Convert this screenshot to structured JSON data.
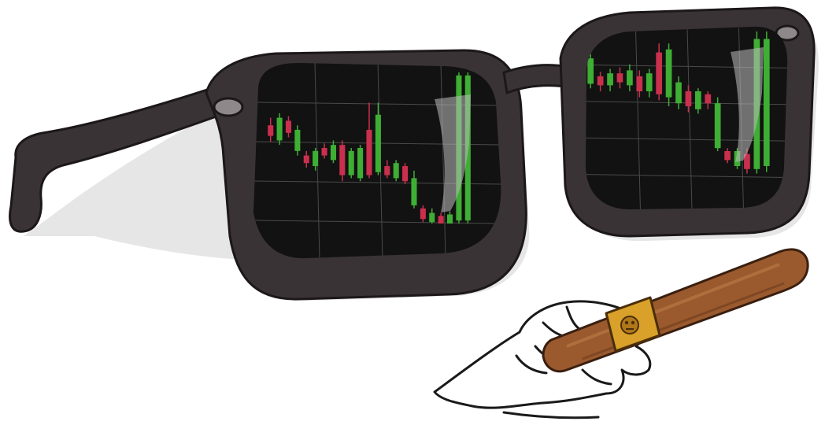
{
  "colors": {
    "background": "#ffffff",
    "frame": "#3a3336",
    "frame_outline": "#1c1718",
    "lens": "#121212",
    "grid": "#4a4a4a",
    "candle_up": "#3fae34",
    "candle_down": "#c9304d",
    "cigar": "#9a5a2e",
    "cigar_band": "#d9a12a"
  },
  "illustration": {
    "subject": "sunglasses-with-candlestick-reflections-and-cigar",
    "left_lens_candles": [
      {
        "dir": "down",
        "o": 0.35,
        "c": 0.42,
        "h": 0.3,
        "l": 0.46
      },
      {
        "dir": "up",
        "o": 0.45,
        "c": 0.3,
        "h": 0.27,
        "l": 0.48
      },
      {
        "dir": "down",
        "o": 0.32,
        "c": 0.4,
        "h": 0.29,
        "l": 0.43
      },
      {
        "dir": "up",
        "o": 0.52,
        "c": 0.38,
        "h": 0.35,
        "l": 0.55
      },
      {
        "dir": "down",
        "o": 0.55,
        "c": 0.6,
        "h": 0.52,
        "l": 0.63
      },
      {
        "dir": "up",
        "o": 0.62,
        "c": 0.52,
        "h": 0.5,
        "l": 0.65
      },
      {
        "dir": "down",
        "o": 0.5,
        "c": 0.55,
        "h": 0.47,
        "l": 0.57
      },
      {
        "dir": "up",
        "o": 0.58,
        "c": 0.48,
        "h": 0.45,
        "l": 0.6
      },
      {
        "dir": "down",
        "o": 0.48,
        "c": 0.68,
        "h": 0.45,
        "l": 0.72
      },
      {
        "dir": "up",
        "o": 0.68,
        "c": 0.52,
        "h": 0.5,
        "l": 0.7
      },
      {
        "dir": "up",
        "o": 0.7,
        "c": 0.5,
        "h": 0.48,
        "l": 0.72
      },
      {
        "dir": "down",
        "o": 0.38,
        "c": 0.68,
        "h": 0.2,
        "l": 0.7
      },
      {
        "dir": "up",
        "o": 0.66,
        "c": 0.28,
        "h": 0.2,
        "l": 0.68
      },
      {
        "dir": "down",
        "o": 0.62,
        "c": 0.68,
        "h": 0.58,
        "l": 0.7
      },
      {
        "dir": "up",
        "o": 0.7,
        "c": 0.6,
        "h": 0.58,
        "l": 0.72
      },
      {
        "dir": "down",
        "o": 0.62,
        "c": 0.72,
        "h": 0.6,
        "l": 0.74
      },
      {
        "dir": "up",
        "o": 0.88,
        "c": 0.7,
        "h": 0.65,
        "l": 0.9
      },
      {
        "dir": "down",
        "o": 0.9,
        "c": 0.97,
        "h": 0.88,
        "l": 0.99
      },
      {
        "dir": "up",
        "o": 0.99,
        "c": 0.93,
        "h": 0.9,
        "l": 1.0
      },
      {
        "dir": "down",
        "o": 0.95,
        "c": 1.0,
        "h": 0.93,
        "l": 1.0
      },
      {
        "dir": "up",
        "o": 1.0,
        "c": 0.94,
        "h": 0.92,
        "l": 1.0
      },
      {
        "dir": "up",
        "o": 0.98,
        "c": 0.02,
        "h": 0.0,
        "l": 1.0
      },
      {
        "dir": "up",
        "o": 0.98,
        "c": 0.02,
        "h": 0.0,
        "l": 1.0
      }
    ],
    "right_lens_candles": [
      {
        "dir": "up",
        "o": 0.35,
        "c": 0.18,
        "h": 0.15,
        "l": 0.38
      },
      {
        "dir": "down",
        "o": 0.3,
        "c": 0.36,
        "h": 0.27,
        "l": 0.4
      },
      {
        "dir": "up",
        "o": 0.36,
        "c": 0.28,
        "h": 0.25,
        "l": 0.4
      },
      {
        "dir": "down",
        "o": 0.28,
        "c": 0.34,
        "h": 0.24,
        "l": 0.38
      },
      {
        "dir": "up",
        "o": 0.36,
        "c": 0.26,
        "h": 0.22,
        "l": 0.4
      },
      {
        "dir": "down",
        "o": 0.3,
        "c": 0.4,
        "h": 0.26,
        "l": 0.44
      },
      {
        "dir": "up",
        "o": 0.4,
        "c": 0.28,
        "h": 0.25,
        "l": 0.44
      },
      {
        "dir": "down",
        "o": 0.14,
        "c": 0.42,
        "h": 0.08,
        "l": 0.46
      },
      {
        "dir": "up",
        "o": 0.44,
        "c": 0.12,
        "h": 0.08,
        "l": 0.5
      },
      {
        "dir": "up",
        "o": 0.48,
        "c": 0.34,
        "h": 0.3,
        "l": 0.52
      },
      {
        "dir": "down",
        "o": 0.4,
        "c": 0.5,
        "h": 0.36,
        "l": 0.54
      },
      {
        "dir": "up",
        "o": 0.52,
        "c": 0.4,
        "h": 0.38,
        "l": 0.55
      },
      {
        "dir": "down",
        "o": 0.42,
        "c": 0.48,
        "h": 0.4,
        "l": 0.52
      },
      {
        "dir": "up",
        "o": 0.78,
        "c": 0.48,
        "h": 0.44,
        "l": 0.8
      },
      {
        "dir": "down",
        "o": 0.8,
        "c": 0.86,
        "h": 0.78,
        "l": 0.88
      },
      {
        "dir": "up",
        "o": 0.9,
        "c": 0.8,
        "h": 0.78,
        "l": 0.92
      },
      {
        "dir": "down",
        "o": 0.82,
        "c": 0.92,
        "h": 0.78,
        "l": 0.95
      },
      {
        "dir": "up",
        "o": 0.92,
        "c": 0.05,
        "h": 0.0,
        "l": 0.95
      },
      {
        "dir": "up",
        "o": 0.9,
        "c": 0.05,
        "h": 0.0,
        "l": 0.94
      }
    ]
  }
}
